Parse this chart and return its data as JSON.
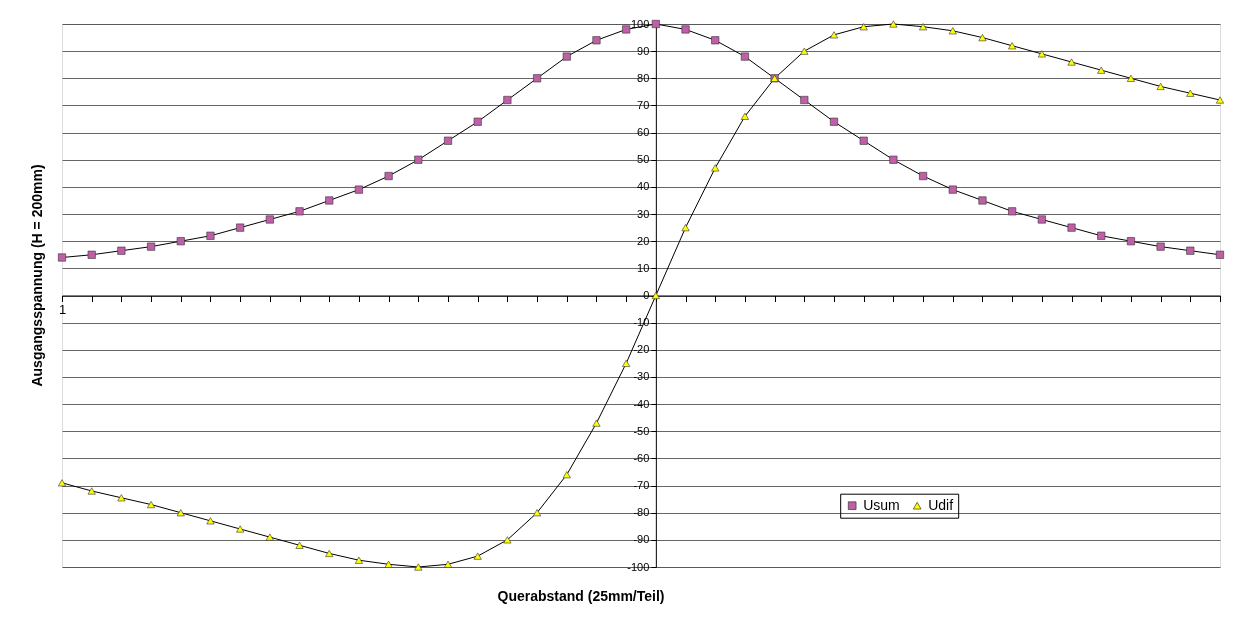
{
  "chart_data": {
    "type": "line",
    "xlabel": "Querabstand (25mm/Teil)",
    "ylabel": "Ausgangsspannung (H = 200mm)",
    "categories": [
      "1",
      null,
      null,
      null,
      null,
      null,
      null,
      null,
      null,
      null,
      null,
      null,
      null,
      null,
      null,
      null,
      null,
      null,
      null,
      null,
      null,
      null,
      null,
      null,
      null,
      null,
      null,
      null,
      null,
      null,
      null,
      null,
      null,
      null,
      null,
      null,
      null,
      null,
      null,
      null
    ],
    "series": [
      {
        "name": "Usum",
        "color": "#bf5fa8",
        "marker": "square",
        "values": [
          14,
          15,
          16.5,
          18,
          20,
          22,
          25,
          28,
          31,
          35,
          39,
          44,
          50,
          57,
          64,
          72,
          80,
          88,
          94,
          98,
          100,
          98,
          94,
          88,
          80,
          72,
          64,
          57,
          50,
          44,
          39,
          35,
          31,
          28,
          25,
          22,
          20,
          18,
          16.5,
          15
        ]
      },
      {
        "name": "Udif",
        "color": "#ffff00",
        "marker": "triangle",
        "values": [
          -69,
          -72,
          -74.5,
          -77,
          -80,
          -83,
          -86,
          -89,
          -92,
          -95,
          -97.5,
          -99,
          -100,
          -99,
          -96,
          -90,
          -80,
          -66,
          -47,
          -25,
          0,
          25,
          47,
          66,
          80,
          90,
          96,
          99,
          100,
          99,
          97.5,
          95,
          92,
          89,
          86,
          83,
          80,
          77,
          74.5,
          72
        ]
      }
    ],
    "ylim": [
      -100,
      100
    ],
    "yticks": [
      -100,
      -90,
      -80,
      -70,
      -60,
      -50,
      -40,
      -30,
      -20,
      -10,
      0,
      10,
      20,
      30,
      40,
      50,
      60,
      70,
      80,
      90,
      100
    ],
    "grid": "y",
    "legend": "bottom right",
    "line_style": "solid"
  }
}
